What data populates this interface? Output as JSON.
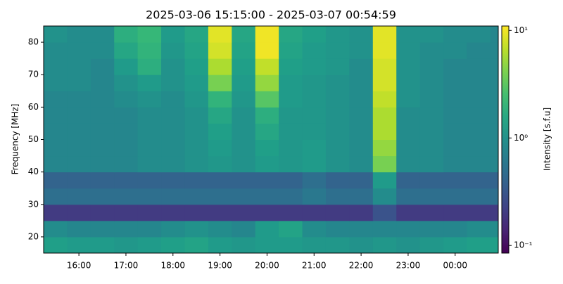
{
  "chart_data": {
    "type": "heatmap",
    "title": "2025-03-06 15:15:00 - 2025-03-07 00:54:59",
    "ylabel": "Frequency [MHz]",
    "colorbar_label": "Intensity [s.f.u]",
    "colormap": "viridis",
    "color_scale": "log",
    "xlim": [
      "2025-03-06T15:15:00",
      "2025-03-07T00:54:59"
    ],
    "xticks": [
      {
        "value": "2025-03-06T16:00:00",
        "label": "16:00"
      },
      {
        "value": "2025-03-06T17:00:00",
        "label": "17:00"
      },
      {
        "value": "2025-03-06T18:00:00",
        "label": "18:00"
      },
      {
        "value": "2025-03-06T19:00:00",
        "label": "19:00"
      },
      {
        "value": "2025-03-06T20:00:00",
        "label": "20:00"
      },
      {
        "value": "2025-03-06T21:00:00",
        "label": "21:00"
      },
      {
        "value": "2025-03-06T22:00:00",
        "label": "22:00"
      },
      {
        "value": "2025-03-06T23:00:00",
        "label": "23:00"
      },
      {
        "value": "2025-03-07T00:00:00",
        "label": "00:00"
      }
    ],
    "ylim": [
      15,
      85
    ],
    "yticks": [
      20,
      30,
      40,
      50,
      60,
      70,
      80
    ],
    "clim": [
      0.085,
      11
    ],
    "cticks": [
      {
        "value": 0.1,
        "label": "10⁻¹"
      },
      {
        "value": 1,
        "label": "10⁰"
      },
      {
        "value": 10,
        "label": "10¹"
      }
    ],
    "xbins": [
      "2025-03-06T15:15:00",
      "2025-03-06T15:45:00",
      "2025-03-06T16:15:00",
      "2025-03-06T16:45:00",
      "2025-03-06T17:15:00",
      "2025-03-06T17:45:00",
      "2025-03-06T18:15:00",
      "2025-03-06T18:45:00",
      "2025-03-06T19:15:00",
      "2025-03-06T19:45:00",
      "2025-03-06T20:15:00",
      "2025-03-06T20:45:00",
      "2025-03-06T21:15:00",
      "2025-03-06T21:45:00",
      "2025-03-06T22:15:00",
      "2025-03-06T22:45:00",
      "2025-03-06T23:15:00",
      "2025-03-06T23:45:00",
      "2025-03-07T00:15:00",
      "2025-03-07T00:45:00",
      "2025-03-07T00:54:59"
    ],
    "ybins": [
      15,
      20,
      25,
      30,
      35,
      40,
      45,
      50,
      55,
      60,
      65,
      70,
      75,
      80,
      85
    ],
    "values": [
      [
        1.3,
        1.2,
        1.2,
        1.1,
        1.2,
        1.3,
        1.4,
        1.2,
        1.1,
        1.2,
        1.2,
        1.1,
        1.1,
        1.0,
        1.1,
        1.0,
        1.1,
        1.2,
        1.3,
        1.3
      ],
      [
        0.9,
        0.8,
        0.8,
        0.8,
        0.8,
        0.9,
        1.0,
        0.9,
        0.8,
        1.2,
        1.4,
        0.9,
        0.8,
        0.8,
        0.8,
        0.8,
        0.8,
        0.8,
        0.9,
        0.9
      ],
      [
        0.2,
        0.2,
        0.2,
        0.2,
        0.2,
        0.2,
        0.2,
        0.2,
        0.2,
        0.2,
        0.2,
        0.2,
        0.2,
        0.2,
        0.3,
        0.2,
        0.2,
        0.2,
        0.2,
        0.2
      ],
      [
        0.5,
        0.5,
        0.5,
        0.5,
        0.5,
        0.5,
        0.5,
        0.5,
        0.5,
        0.5,
        0.5,
        0.6,
        0.5,
        0.5,
        0.9,
        0.5,
        0.5,
        0.5,
        0.5,
        0.5
      ],
      [
        0.4,
        0.4,
        0.4,
        0.4,
        0.4,
        0.4,
        0.4,
        0.4,
        0.4,
        0.4,
        0.4,
        0.5,
        0.4,
        0.4,
        1.2,
        0.4,
        0.4,
        0.4,
        0.4,
        0.4
      ],
      [
        0.8,
        0.8,
        0.8,
        0.8,
        0.9,
        0.9,
        1.0,
        1.1,
        1.0,
        1.2,
        1.1,
        1.2,
        1.0,
        0.9,
        4.0,
        0.9,
        0.9,
        0.8,
        0.8,
        0.8
      ],
      [
        0.8,
        0.8,
        0.8,
        0.8,
        0.9,
        0.9,
        1.0,
        1.2,
        1.0,
        1.3,
        1.1,
        1.2,
        1.0,
        0.9,
        5.0,
        0.9,
        0.9,
        0.8,
        0.8,
        0.8
      ],
      [
        0.8,
        0.8,
        0.8,
        0.8,
        0.9,
        0.9,
        1.0,
        1.3,
        1.0,
        1.5,
        1.1,
        1.1,
        1.0,
        0.9,
        6.0,
        0.9,
        0.9,
        0.8,
        0.8,
        0.8
      ],
      [
        0.8,
        0.8,
        0.8,
        0.8,
        0.9,
        0.9,
        1.0,
        1.5,
        1.0,
        1.8,
        1.1,
        1.1,
        1.0,
        0.9,
        6.0,
        0.9,
        0.9,
        0.8,
        0.8,
        0.8
      ],
      [
        0.8,
        0.8,
        0.8,
        0.9,
        1.0,
        0.9,
        1.1,
        2.0,
        1.1,
        3.0,
        1.2,
        1.1,
        1.0,
        0.9,
        7.0,
        1.0,
        0.9,
        0.8,
        0.8,
        0.8
      ],
      [
        0.9,
        0.9,
        0.8,
        1.0,
        1.2,
        1.0,
        1.2,
        4.0,
        1.2,
        5.0,
        1.2,
        1.1,
        1.0,
        0.9,
        8.0,
        1.0,
        0.9,
        0.8,
        0.8,
        0.8
      ],
      [
        0.9,
        0.9,
        0.8,
        1.2,
        1.8,
        1.0,
        1.3,
        6.0,
        1.3,
        7.0,
        1.3,
        1.2,
        1.1,
        0.9,
        8.0,
        1.0,
        0.9,
        0.8,
        0.8,
        0.8
      ],
      [
        0.9,
        0.9,
        0.9,
        1.5,
        2.0,
        1.1,
        1.4,
        8.0,
        1.4,
        10.0,
        1.4,
        1.2,
        1.1,
        1.0,
        9.0,
        1.0,
        0.9,
        0.9,
        0.8,
        0.8
      ],
      [
        1.0,
        0.9,
        0.9,
        1.8,
        2.2,
        1.2,
        1.5,
        9.0,
        1.5,
        10.0,
        1.5,
        1.3,
        1.1,
        1.0,
        9.0,
        1.0,
        1.0,
        0.9,
        0.9,
        0.8
      ]
    ]
  }
}
